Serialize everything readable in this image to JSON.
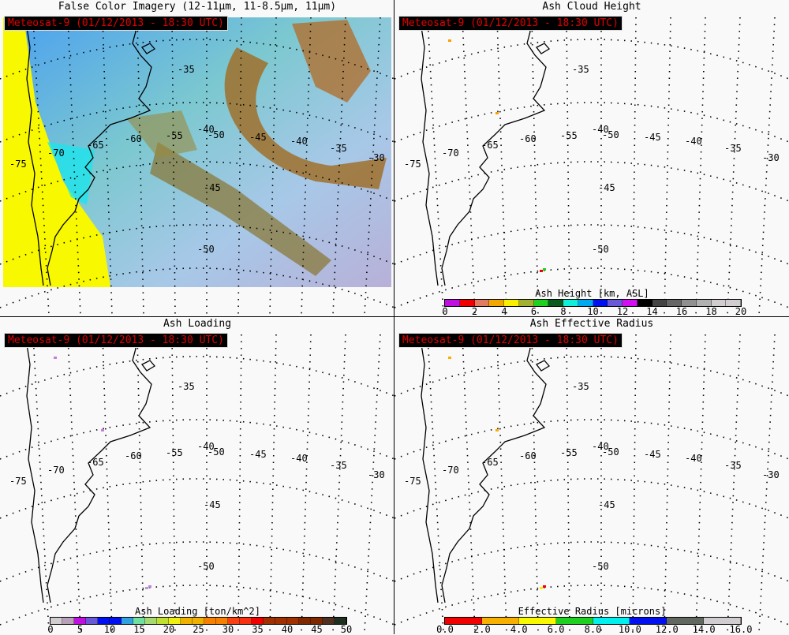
{
  "timestamp": "Meteosat-9  (01/12/2013 - 18:30 UTC)",
  "panels": [
    {
      "title": "False Color Imagery (12-11μm, 11-8.5μm, 11μm)",
      "type": "imagery"
    },
    {
      "title": "Ash Cloud Height",
      "type": "height",
      "colorbar": {
        "label": "Ash Height [km, ASL]",
        "ticks": [
          "0",
          "2",
          "4",
          "6",
          "8",
          "10",
          "12",
          "14",
          "16",
          "18",
          "20"
        ],
        "colors": [
          "#c010e0",
          "#f00000",
          "#e07a60",
          "#f0a800",
          "#f8f000",
          "#a0b030",
          "#20d020",
          "#0a5a20",
          "#10f0d8",
          "#00a8f0",
          "#0010f0",
          "#6a58d8",
          "#d010f0",
          "#000000",
          "#444444",
          "#666666",
          "#909090",
          "#b0b0b0",
          "#d0ccd0",
          "#d0ccd0"
        ]
      }
    },
    {
      "title": "Ash Loading",
      "type": "loading",
      "colorbar": {
        "label": "Ash Loading [ton/km^2]",
        "ticks": [
          "0",
          "5",
          "10",
          "15",
          "20",
          "25",
          "30",
          "35",
          "40",
          "45",
          "50"
        ],
        "colors": [
          "#d0ccd0",
          "#b8a0b8",
          "#c010e0",
          "#6a58d8",
          "#0010f0",
          "#0010f0",
          "#30a0e0",
          "#70e0a0",
          "#a8d870",
          "#c0e030",
          "#f0f010",
          "#f0b000",
          "#f0b000",
          "#f88000",
          "#f88000",
          "#f84010",
          "#f83010",
          "#f00000",
          "#a03000",
          "#a03000",
          "#a03000",
          "#802800",
          "#802800",
          "#503020",
          "#203020"
        ]
      }
    },
    {
      "title": "Ash Effective Radius",
      "type": "radius",
      "colorbar": {
        "label": "Effective Radius [microns]",
        "ticks": [
          "0.0",
          "2.0",
          "4.0",
          "6.0",
          "8.0",
          "10.0",
          "12.0",
          "14.0",
          "16.0"
        ],
        "colors": [
          "#f00000",
          "#f8b000",
          "#f8f800",
          "#20d020",
          "#00f0f0",
          "#0010f0",
          "#606860",
          "#d0ccd0"
        ]
      }
    }
  ],
  "graticule": {
    "lat_labels": [
      "-35",
      "-40",
      "-45",
      "-50"
    ],
    "lon_labels": [
      "-75",
      "-70",
      "-65",
      "-60",
      "-55",
      "-50",
      "-45",
      "-40",
      "-35",
      "-30"
    ]
  }
}
